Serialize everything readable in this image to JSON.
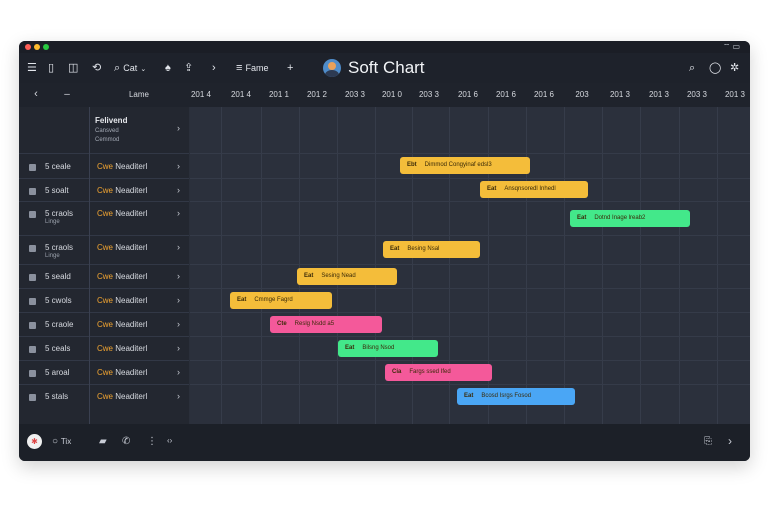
{
  "app": {
    "title": "Soft Chart",
    "colors": {
      "window_bg": "#1e222b",
      "accent_orange": "#f2a531",
      "bar_yellow": "#f4bd3a",
      "bar_green": "#43e88a",
      "bar_pink": "#f4599a",
      "bar_blue": "#4aa6f5"
    }
  },
  "titlebar": {
    "traffic_lights": [
      "#ff5f57",
      "#febc2e",
      "#28c840"
    ],
    "system_icons": [
      "wifi-icon",
      "battery-icon"
    ]
  },
  "toolbar": {
    "left": [
      {
        "name": "menu-icon",
        "glyph": "☰"
      },
      {
        "name": "page-icon",
        "glyph": "▯"
      },
      {
        "name": "book-icon",
        "glyph": "◫"
      },
      {
        "name": "refresh-icon",
        "glyph": "⟲"
      }
    ],
    "search_label": "Cat",
    "search_glyph": "⌕",
    "mid_icons": [
      {
        "name": "bell-icon",
        "glyph": "♠"
      },
      {
        "name": "share-icon",
        "glyph": "⇪"
      },
      {
        "name": "chevron-right-icon",
        "glyph": "›"
      }
    ],
    "filter_label": "Fame",
    "filter_glyph": "≡",
    "add_glyph": "+",
    "right_icons": [
      {
        "name": "search-icon",
        "glyph": "⌕"
      },
      {
        "name": "circle-icon",
        "glyph": "◯"
      },
      {
        "name": "settings-icon",
        "glyph": "✲"
      }
    ]
  },
  "grid": {
    "header": {
      "prev": "‹",
      "collapse": "–",
      "label_col": "Lame"
    },
    "columns": [
      "201 4",
      "201 4",
      "201 1",
      "201 2",
      "203 3",
      "201 0",
      "203 3",
      "201 6",
      "201 6",
      "201 6",
      "203",
      "201 3",
      "201 3",
      "203 3",
      "201 3"
    ],
    "group": {
      "title": "Felivend",
      "sub1": "Cansved",
      "sub2": "Cemmod"
    },
    "rows": [
      {
        "name": "5 ceale",
        "sub": "",
        "label_a": "Cwe",
        "label_b": " Neaditerl"
      },
      {
        "name": "5 soalt",
        "sub": "",
        "label_a": "Cwe",
        "label_b": " Neaditerl"
      },
      {
        "name": "5 craols",
        "sub": "Linge",
        "label_a": "Cwe",
        "label_b": " Neaditerl"
      },
      {
        "name": "5 craols",
        "sub": "Linge",
        "label_a": "Cwe",
        "label_b": " Neaditerl"
      },
      {
        "name": "5 seald",
        "sub": "",
        "label_a": "Cwe",
        "label_b": " Neaditerl"
      },
      {
        "name": "5 cwols",
        "sub": "",
        "label_a": "Cwe",
        "label_b": " Neaditerl"
      },
      {
        "name": "5 craole",
        "sub": "",
        "label_a": "Cwe",
        "label_b": " Neaditerl"
      },
      {
        "name": "5 ceals",
        "sub": "",
        "label_a": "Cwe",
        "label_b": " Neaditerl"
      },
      {
        "name": "5 aroal",
        "sub": "",
        "label_a": "Cwe",
        "label_b": " Neaditerl"
      },
      {
        "name": "5 stals",
        "sub": "",
        "label_a": "Cwe",
        "label_b": " Neaditerl"
      }
    ],
    "tasks": [
      {
        "row": 0,
        "tag": "Ebt",
        "text": "Dimmod Congyinaf edsl3",
        "color": "#f4bd3a"
      },
      {
        "row": 1,
        "tag": "Eat",
        "text": "Ansqnsoredl Inhedl",
        "color": "#f4bd3a"
      },
      {
        "row": 2,
        "tag": "Eat",
        "text": "Dotnd Inage lreab2",
        "color": "#43e88a"
      },
      {
        "row": 3,
        "tag": "Eat",
        "text": "Besing Nsal",
        "color": "#f4bd3a"
      },
      {
        "row": 4,
        "tag": "Eat",
        "text": "Sesing Nead",
        "color": "#f4bd3a"
      },
      {
        "row": 5,
        "tag": "Eat",
        "text": "Cmmge Fagrd",
        "color": "#f4bd3a"
      },
      {
        "row": 6,
        "tag": "Cte",
        "text": "Reslg Nsdd a5",
        "color": "#f4599a"
      },
      {
        "row": 7,
        "tag": "Eat",
        "text": "Bilsng Nsod",
        "color": "#43e88a"
      },
      {
        "row": 8,
        "tag": "Cia",
        "text": "Fargs ssed Ifed",
        "color": "#f4599a"
      },
      {
        "row": 9,
        "tag": "Eat",
        "text": "Bcosd Isrgs Fosod",
        "color": "#4aa6f5"
      }
    ]
  },
  "footer": {
    "left": [
      {
        "name": "user-icon",
        "glyph": "◉"
      },
      {
        "name": "status-icon",
        "glyph": "○",
        "label": "Tix"
      },
      {
        "name": "folder-icon",
        "glyph": "▰"
      },
      {
        "name": "phone-icon",
        "glyph": "✆"
      },
      {
        "name": "more-icon",
        "glyph": "⋮"
      },
      {
        "name": "code-icon",
        "glyph": "‹›"
      }
    ],
    "right": [
      {
        "name": "export-icon",
        "glyph": "⎘"
      },
      {
        "name": "next-icon",
        "glyph": "›"
      }
    ]
  }
}
